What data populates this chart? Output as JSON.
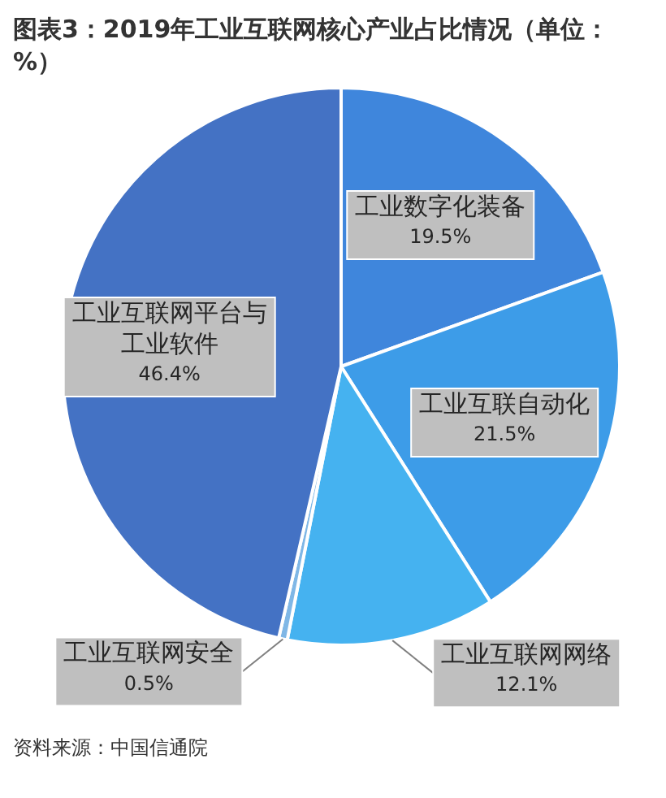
{
  "chart_data": {
    "type": "pie",
    "title": "图表3：2019年工业互联网核心产业占比情况（单位：%）",
    "categories": [
      "工业数字化装备",
      "工业互联自动化",
      "工业互联网网络",
      "工业互联网安全",
      "工业互联网平台与工业软件"
    ],
    "values": [
      19.5,
      21.5,
      12.1,
      0.5,
      46.4
    ],
    "value_labels": [
      "19.5%",
      "21.5%",
      "12.1%",
      "0.5%",
      "46.4%"
    ],
    "colors": [
      "#3f86dc",
      "#3d9ce8",
      "#45b2f0",
      "#7fb7e6",
      "#4472c4"
    ],
    "legend": false,
    "annotations": [
      "资料来源：中国信通院"
    ]
  }
}
